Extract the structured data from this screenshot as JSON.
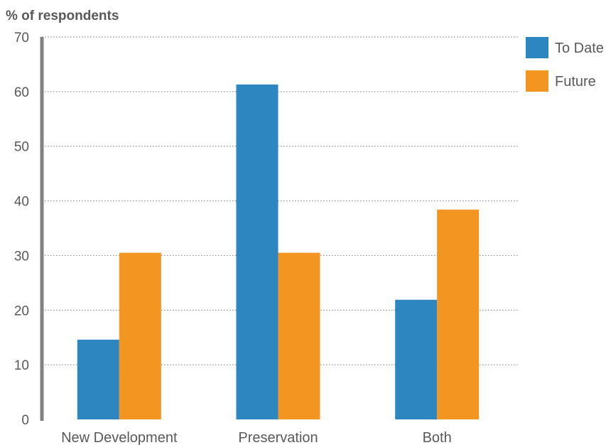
{
  "chart_data": {
    "type": "bar",
    "ylabel": "% of respondents",
    "ylim": [
      0,
      70
    ],
    "yticks": [
      0,
      10,
      20,
      30,
      40,
      50,
      60,
      70
    ],
    "categories": [
      "New Development",
      "Preservation",
      "Both"
    ],
    "series": [
      {
        "name": "To Date",
        "color": "#2e86c1",
        "values": [
          14.6,
          61.3,
          21.9
        ]
      },
      {
        "name": "Future",
        "color": "#f39521",
        "values": [
          30.5,
          30.5,
          38.4
        ]
      }
    ],
    "grid": true,
    "legend": "top-right"
  }
}
